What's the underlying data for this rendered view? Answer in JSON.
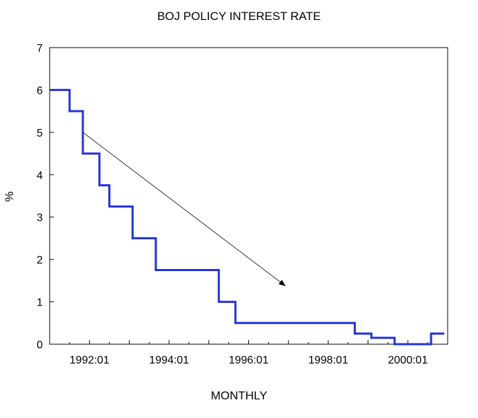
{
  "chart_data": {
    "type": "line",
    "title": "BOJ POLICY INTEREST RATE",
    "xlabel": "MONTHLY",
    "ylabel": "%",
    "ylim": [
      0,
      7
    ],
    "xlim": [
      "1991:01",
      "2000:12"
    ],
    "yticks": [
      0,
      1,
      2,
      3,
      4,
      5,
      6,
      7
    ],
    "xticks": [
      "1992:01",
      "1994:01",
      "1996:01",
      "1998:01",
      "2000:01"
    ],
    "grid": false,
    "legend": "none",
    "series": [
      {
        "color": "#1f2fe8",
        "points": [
          [
            "1991:01",
            6.0
          ],
          [
            "1991:07",
            5.5
          ],
          [
            "1991:11",
            4.5
          ],
          [
            "1992:04",
            3.75
          ],
          [
            "1992:07",
            3.25
          ],
          [
            "1993:02",
            2.5
          ],
          [
            "1993:09",
            1.75
          ],
          [
            "1995:04",
            1.0
          ],
          [
            "1995:09",
            0.5
          ],
          [
            "1998:09",
            0.25
          ],
          [
            "1999:02",
            0.15
          ],
          [
            "1999:09",
            0.0
          ],
          [
            "2000:08",
            0.25
          ],
          [
            "2000:12",
            0.25
          ]
        ]
      }
    ],
    "annotations": [
      {
        "type": "arrow",
        "from": [
          "1991:11",
          5.0
        ],
        "to": [
          "1996:12",
          1.38
        ]
      }
    ]
  }
}
